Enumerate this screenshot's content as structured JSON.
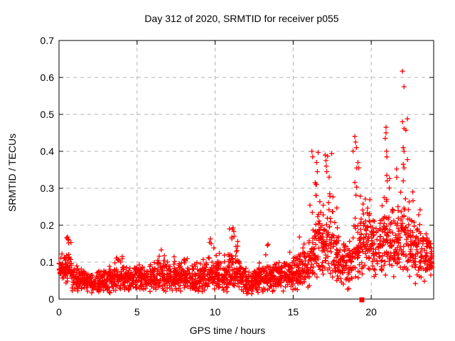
{
  "page": {
    "background": "#ffffff"
  },
  "chart_data": {
    "type": "scatter",
    "title": "Day 312 of 2020, SRMTID for receiver p055",
    "xlabel": "GPS time / hours",
    "ylabel": "SRMTID / TECUs",
    "xlim": [
      0,
      24
    ],
    "ylim": [
      0,
      0.7
    ],
    "xticks": [
      0,
      5,
      10,
      15,
      20
    ],
    "xtick_labels": [
      "0",
      "5",
      "10",
      "15",
      "20"
    ],
    "yticks": [
      0,
      0.1,
      0.2,
      0.3,
      0.4,
      0.5,
      0.6,
      0.7
    ],
    "ytick_labels": [
      "0",
      "0.1",
      "0.2",
      "0.3",
      "0.4",
      "0.5",
      "0.6",
      "0.7"
    ],
    "grid": true,
    "grid_style": "dashed",
    "legend": "none",
    "marker": "plus",
    "marker_size": 7,
    "marker_color": "#ff0000",
    "grid_color": "#b0b0b0",
    "axis_color": "#000000",
    "seed": 42,
    "note": "dense scatter ~2100 points; scatter_bins = [hour_start, hour_end, count, band_center, band_spread, bin_max] read from plot envelope",
    "scatter_bins": [
      [
        0.0,
        0.4,
        38,
        0.08,
        0.03,
        0.135
      ],
      [
        0.4,
        0.8,
        40,
        0.075,
        0.032,
        0.17
      ],
      [
        0.8,
        1.2,
        36,
        0.055,
        0.024,
        0.1
      ],
      [
        1.2,
        1.6,
        36,
        0.05,
        0.022,
        0.092
      ],
      [
        1.6,
        2.0,
        36,
        0.045,
        0.02,
        0.082
      ],
      [
        2.0,
        2.4,
        36,
        0.04,
        0.018,
        0.075
      ],
      [
        2.4,
        2.8,
        36,
        0.042,
        0.02,
        0.08
      ],
      [
        2.8,
        3.2,
        36,
        0.046,
        0.022,
        0.092
      ],
      [
        3.2,
        3.6,
        36,
        0.05,
        0.024,
        0.1
      ],
      [
        3.6,
        4.0,
        36,
        0.055,
        0.025,
        0.112
      ],
      [
        4.0,
        4.4,
        36,
        0.055,
        0.025,
        0.115
      ],
      [
        4.4,
        4.8,
        36,
        0.05,
        0.022,
        0.09
      ],
      [
        4.8,
        5.2,
        36,
        0.053,
        0.022,
        0.096
      ],
      [
        5.2,
        5.6,
        36,
        0.055,
        0.024,
        0.1
      ],
      [
        5.6,
        6.0,
        36,
        0.05,
        0.022,
        0.094
      ],
      [
        6.0,
        6.4,
        36,
        0.054,
        0.025,
        0.118
      ],
      [
        6.4,
        6.8,
        36,
        0.058,
        0.027,
        0.134
      ],
      [
        6.8,
        7.2,
        36,
        0.054,
        0.024,
        0.108
      ],
      [
        7.2,
        7.6,
        36,
        0.055,
        0.026,
        0.118
      ],
      [
        7.6,
        8.0,
        36,
        0.058,
        0.027,
        0.124
      ],
      [
        8.0,
        8.4,
        36,
        0.055,
        0.025,
        0.11
      ],
      [
        8.4,
        8.8,
        36,
        0.05,
        0.024,
        0.1
      ],
      [
        8.8,
        9.2,
        36,
        0.054,
        0.025,
        0.11
      ],
      [
        9.2,
        9.6,
        36,
        0.058,
        0.028,
        0.128
      ],
      [
        9.6,
        10.0,
        40,
        0.068,
        0.033,
        0.165
      ],
      [
        10.0,
        10.4,
        36,
        0.063,
        0.029,
        0.13
      ],
      [
        10.4,
        10.8,
        36,
        0.058,
        0.027,
        0.12
      ],
      [
        10.8,
        11.2,
        40,
        0.072,
        0.034,
        0.193
      ],
      [
        11.2,
        11.6,
        38,
        0.068,
        0.032,
        0.16
      ],
      [
        11.6,
        12.0,
        36,
        0.05,
        0.024,
        0.1
      ],
      [
        12.0,
        12.4,
        36,
        0.04,
        0.021,
        0.085
      ],
      [
        12.4,
        12.8,
        36,
        0.044,
        0.023,
        0.09
      ],
      [
        12.8,
        13.2,
        36,
        0.053,
        0.026,
        0.11
      ],
      [
        13.2,
        13.6,
        36,
        0.063,
        0.029,
        0.148
      ],
      [
        13.6,
        14.0,
        36,
        0.058,
        0.027,
        0.12
      ],
      [
        14.0,
        14.4,
        36,
        0.058,
        0.027,
        0.12
      ],
      [
        14.4,
        14.8,
        36,
        0.063,
        0.029,
        0.145
      ],
      [
        14.8,
        15.2,
        36,
        0.058,
        0.027,
        0.12
      ],
      [
        15.2,
        15.6,
        36,
        0.068,
        0.031,
        0.165
      ],
      [
        15.6,
        16.0,
        36,
        0.078,
        0.034,
        0.15
      ],
      [
        16.0,
        16.4,
        40,
        0.115,
        0.055,
        0.3
      ],
      [
        16.4,
        16.8,
        42,
        0.15,
        0.068,
        0.4
      ],
      [
        16.8,
        17.2,
        40,
        0.14,
        0.06,
        0.35
      ],
      [
        17.2,
        17.6,
        40,
        0.15,
        0.068,
        0.4
      ],
      [
        17.6,
        18.0,
        38,
        0.115,
        0.048,
        0.25
      ],
      [
        18.0,
        18.4,
        36,
        0.09,
        0.04,
        0.18
      ],
      [
        18.4,
        18.8,
        36,
        0.08,
        0.038,
        0.16
      ],
      [
        18.8,
        19.2,
        40,
        0.125,
        0.055,
        0.44
      ],
      [
        19.2,
        19.6,
        38,
        0.145,
        0.058,
        0.3
      ],
      [
        19.6,
        20.0,
        38,
        0.14,
        0.055,
        0.28
      ],
      [
        20.0,
        20.4,
        38,
        0.13,
        0.05,
        0.26
      ],
      [
        20.4,
        20.8,
        38,
        0.14,
        0.055,
        0.3
      ],
      [
        20.8,
        21.2,
        40,
        0.155,
        0.065,
        0.47
      ],
      [
        21.2,
        21.6,
        38,
        0.14,
        0.058,
        0.28
      ],
      [
        21.6,
        22.0,
        40,
        0.155,
        0.065,
        0.47
      ],
      [
        22.0,
        22.4,
        40,
        0.165,
        0.075,
        0.62
      ],
      [
        22.4,
        22.8,
        38,
        0.14,
        0.058,
        0.3
      ],
      [
        22.8,
        23.2,
        38,
        0.12,
        0.055,
        0.25
      ],
      [
        23.2,
        23.6,
        36,
        0.108,
        0.048,
        0.2
      ],
      [
        23.6,
        23.9,
        26,
        0.1,
        0.046,
        0.17
      ]
    ],
    "peak_points": [
      [
        0.55,
        0.168
      ],
      [
        0.6,
        0.16
      ],
      [
        0.62,
        0.152
      ],
      [
        4.05,
        0.115
      ],
      [
        6.55,
        0.133
      ],
      [
        9.7,
        0.163
      ],
      [
        9.75,
        0.15
      ],
      [
        11.15,
        0.193
      ],
      [
        11.2,
        0.183
      ],
      [
        11.22,
        0.17
      ],
      [
        13.4,
        0.148
      ],
      [
        15.4,
        0.168
      ],
      [
        16.2,
        0.4
      ],
      [
        16.25,
        0.385
      ],
      [
        16.5,
        0.37
      ],
      [
        16.55,
        0.345
      ],
      [
        17.05,
        0.39
      ],
      [
        17.1,
        0.375
      ],
      [
        17.12,
        0.36
      ],
      [
        17.15,
        0.345
      ],
      [
        17.3,
        0.33
      ],
      [
        18.95,
        0.44
      ],
      [
        19.0,
        0.425
      ],
      [
        19.05,
        0.41
      ],
      [
        19.15,
        0.37
      ],
      [
        19.2,
        0.355
      ],
      [
        20.9,
        0.435
      ],
      [
        20.95,
        0.465
      ],
      [
        20.95,
        0.45
      ],
      [
        20.98,
        0.4
      ],
      [
        21.0,
        0.385
      ],
      [
        21.0,
        0.335
      ],
      [
        21.02,
        0.32
      ],
      [
        22.0,
        0.617
      ],
      [
        22.1,
        0.575
      ],
      [
        22.0,
        0.48
      ],
      [
        22.05,
        0.41
      ],
      [
        22.1,
        0.4
      ],
      [
        22.05,
        0.365
      ],
      [
        22.1,
        0.355
      ],
      [
        22.05,
        0.32
      ]
    ],
    "special_points": [
      {
        "x": 19.4,
        "y": 0,
        "marker": "filled-square",
        "size": 7,
        "color": "#ff0000"
      }
    ]
  }
}
